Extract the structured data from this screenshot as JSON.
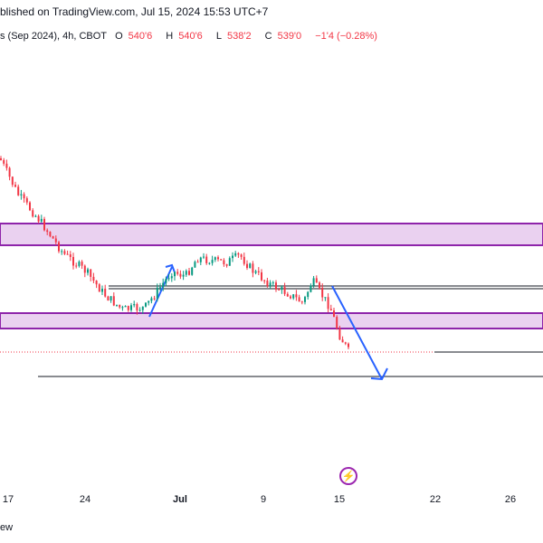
{
  "header": {
    "published": "blished on TradingView.com, Jul 15, 2024 15:53 UTC+7"
  },
  "symbol": {
    "name": "s (Sep 2024), 4h, CBOT",
    "open_label": "O",
    "open_value": "540'6",
    "high_label": "H",
    "high_value": "540'6",
    "low_label": "L",
    "low_value": "538'2",
    "close_label": "C",
    "close_value": "539'0",
    "change": "−1'4 (−0.28%)"
  },
  "time_axis": {
    "ticks": [
      {
        "label": "17",
        "bold": false
      },
      {
        "label": "24",
        "bold": false
      },
      {
        "label": "Jul",
        "bold": true
      },
      {
        "label": "9",
        "bold": false
      },
      {
        "label": "15",
        "bold": false
      },
      {
        "label": "22",
        "bold": false
      },
      {
        "label": "26",
        "bold": false
      }
    ]
  },
  "footer": {
    "text": "ew"
  },
  "colors": {
    "up": "#089981",
    "down": "#f23645",
    "zone_fill": "#ead1f0",
    "zone_border": "#8e24aa",
    "arrow": "#2962ff",
    "line": "#131722"
  },
  "icons": {
    "lightning": "lightning-icon"
  }
}
